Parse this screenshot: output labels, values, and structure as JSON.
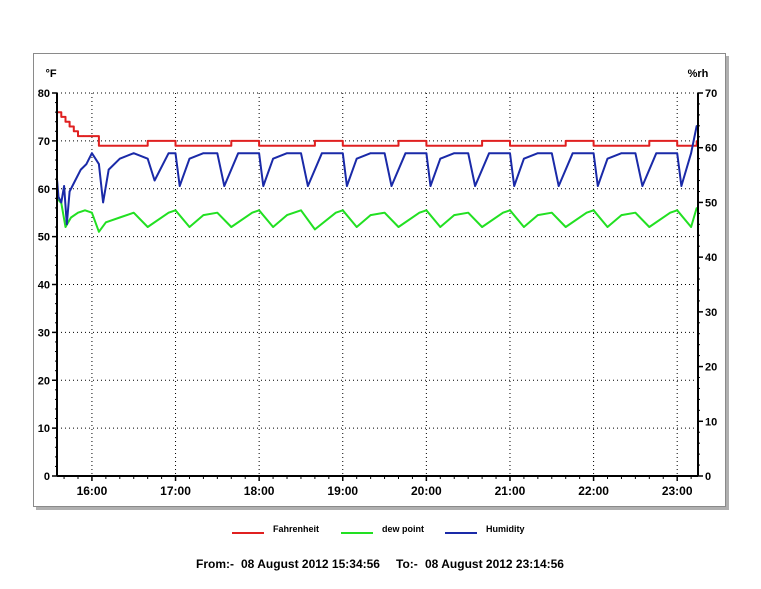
{
  "chart_data": {
    "type": "line",
    "left_axis_unit": "°F",
    "right_axis_unit": "%rh",
    "left_ylim": [
      0,
      80
    ],
    "right_ylim": [
      0,
      70
    ],
    "left_ticks": [
      0,
      10,
      20,
      30,
      40,
      50,
      60,
      70,
      80
    ],
    "right_ticks": [
      0,
      10,
      20,
      30,
      40,
      50,
      60,
      70
    ],
    "x_start": "15:34:56",
    "x_end": "23:14:56",
    "x_ticks": [
      "16:00",
      "17:00",
      "18:00",
      "19:00",
      "20:00",
      "21:00",
      "22:00",
      "23:00"
    ],
    "grid": true,
    "legend_placement": "bottom",
    "series": [
      {
        "name": "Fahrenheit",
        "axis": "left",
        "color": "#e02020",
        "x": [
          "15:35",
          "15:38",
          "15:41",
          "15:44",
          "15:47",
          "15:50",
          "15:54",
          "15:58",
          "16:05",
          "16:20",
          "16:40",
          "17:00",
          "17:20",
          "17:40",
          "18:00",
          "18:20",
          "18:40",
          "19:00",
          "19:20",
          "19:40",
          "20:00",
          "20:20",
          "20:40",
          "21:00",
          "21:20",
          "21:40",
          "22:00",
          "22:20",
          "22:40",
          "23:00",
          "23:10",
          "23:14"
        ],
        "values": [
          76,
          75,
          74,
          73,
          72,
          71,
          71,
          71,
          69,
          69,
          70,
          69,
          69,
          70,
          69,
          69,
          70,
          69,
          69,
          70,
          69,
          69,
          70,
          69,
          69,
          70,
          69,
          69,
          70,
          69,
          69,
          70
        ]
      },
      {
        "name": "dew point",
        "axis": "left",
        "color": "#22e022",
        "x": [
          "15:35",
          "15:38",
          "15:41",
          "15:45",
          "15:50",
          "15:55",
          "16:00",
          "16:05",
          "16:10",
          "16:20",
          "16:30",
          "16:40",
          "16:55",
          "17:00",
          "17:10",
          "17:20",
          "17:30",
          "17:40",
          "17:55",
          "18:00",
          "18:10",
          "18:20",
          "18:30",
          "18:40",
          "18:55",
          "19:00",
          "19:10",
          "19:20",
          "19:30",
          "19:40",
          "19:55",
          "20:00",
          "20:10",
          "20:20",
          "20:30",
          "20:40",
          "20:55",
          "21:00",
          "21:10",
          "21:20",
          "21:30",
          "21:40",
          "21:55",
          "22:00",
          "22:10",
          "22:20",
          "22:30",
          "22:40",
          "22:55",
          "23:00",
          "23:10",
          "23:14"
        ],
        "values": [
          58,
          57,
          52,
          54,
          55,
          55.5,
          55,
          51,
          53,
          54,
          55,
          52,
          55,
          55.5,
          52,
          54.5,
          55,
          52,
          55,
          55.5,
          52,
          54.5,
          55.5,
          51.5,
          55,
          55.5,
          52,
          54.5,
          55,
          52,
          55,
          55.5,
          52,
          54.5,
          55,
          52,
          55,
          55.5,
          52,
          54.5,
          55,
          52,
          55,
          55.5,
          52,
          54.5,
          55,
          52,
          55,
          55.5,
          52,
          56
        ]
      },
      {
        "name": "Humidity",
        "axis": "right",
        "color": "#1a2aa8",
        "x": [
          "15:35",
          "15:36",
          "15:38",
          "15:40",
          "15:42",
          "15:44",
          "15:48",
          "15:52",
          "15:56",
          "16:00",
          "16:05",
          "16:08",
          "16:12",
          "16:20",
          "16:30",
          "16:40",
          "16:45",
          "16:55",
          "17:00",
          "17:03",
          "17:10",
          "17:20",
          "17:30",
          "17:35",
          "17:45",
          "18:00",
          "18:03",
          "18:10",
          "18:20",
          "18:30",
          "18:35",
          "18:45",
          "19:00",
          "19:03",
          "19:10",
          "19:20",
          "19:30",
          "19:35",
          "19:45",
          "20:00",
          "20:03",
          "20:10",
          "20:20",
          "20:30",
          "20:35",
          "20:45",
          "21:00",
          "21:03",
          "21:10",
          "21:20",
          "21:30",
          "21:35",
          "21:45",
          "22:00",
          "22:03",
          "22:10",
          "22:20",
          "22:30",
          "22:35",
          "22:45",
          "23:00",
          "23:03",
          "23:10",
          "23:14"
        ],
        "values": [
          54,
          51,
          50,
          53,
          46,
          52,
          54,
          56,
          57,
          59,
          57,
          50,
          56,
          58,
          59,
          58,
          54,
          59,
          59,
          53,
          58,
          59,
          59,
          53,
          59,
          59,
          53,
          58,
          59,
          59,
          53,
          59,
          59,
          53,
          58,
          59,
          59,
          53,
          59,
          59,
          53,
          58,
          59,
          59,
          53,
          59,
          59,
          53,
          58,
          59,
          59,
          53,
          59,
          59,
          53,
          58,
          59,
          59,
          53,
          59,
          59,
          53,
          59,
          64
        ]
      }
    ]
  },
  "footer": {
    "from_label": "From:-",
    "from_value": "08 August 2012 15:34:56",
    "to_label": "To:-",
    "to_value": "08 August 2012 23:14:56"
  }
}
